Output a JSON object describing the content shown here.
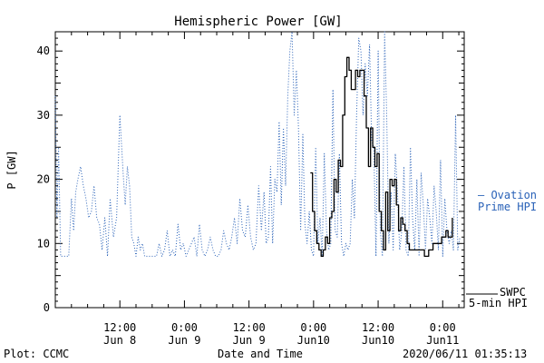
{
  "chart_data": {
    "type": "line",
    "title": "Hemispheric Power [GW]",
    "xlabel": "Date and Time",
    "ylabel": "P [GW]",
    "ylim": [
      0,
      43
    ],
    "xlim_hours": [
      0,
      76
    ],
    "yticks": [
      0,
      10,
      20,
      30,
      40
    ],
    "xticks": [
      {
        "hour": 12,
        "top": "12:00",
        "bottom": "Jun 8"
      },
      {
        "hour": 24,
        "top": "0:00",
        "bottom": "Jun 9"
      },
      {
        "hour": 36,
        "top": "12:00",
        "bottom": "Jun 9"
      },
      {
        "hour": 48,
        "top": "0:00",
        "bottom": "Jun10"
      },
      {
        "hour": 60,
        "top": "12:00",
        "bottom": "Jun10"
      },
      {
        "hour": 72,
        "top": "0:00",
        "bottom": "Jun11"
      }
    ],
    "series": [
      {
        "name": "Ovation Prime HPI",
        "label_lines": [
          "— Ovation",
          "Prime HPI"
        ],
        "color": "#2a62b8",
        "style": "dotted",
        "x": [
          0,
          0.3,
          0.6,
          1,
          1.5,
          2,
          2.5,
          3,
          3.4,
          3.8,
          4.2,
          4.7,
          5.2,
          5.7,
          6.2,
          6.7,
          7.2,
          7.7,
          8.2,
          8.7,
          9.2,
          9.7,
          10.2,
          10.8,
          11.4,
          12,
          12.6,
          13,
          13.4,
          13.8,
          14.2,
          14.6,
          15,
          15.4,
          15.8,
          16.2,
          16.6,
          17,
          17.4,
          17.8,
          18.3,
          18.8,
          19.3,
          19.8,
          20.3,
          20.8,
          21.3,
          21.8,
          22.3,
          22.8,
          23.3,
          23.8,
          24.3,
          24.8,
          25.3,
          25.8,
          26.3,
          26.8,
          27.3,
          27.8,
          28.3,
          28.8,
          29.3,
          29.8,
          30.3,
          30.8,
          31.3,
          31.8,
          32.3,
          32.8,
          33.3,
          33.8,
          34.3,
          34.8,
          35.3,
          35.8,
          36.3,
          36.8,
          37.3,
          37.8,
          38.3,
          38.8,
          39.2,
          39.6,
          40,
          40.4,
          40.8,
          41.2,
          41.6,
          42,
          42.4,
          42.8,
          43.2,
          43.6,
          44,
          44.4,
          44.8,
          45.2,
          45.6,
          46,
          46.4,
          46.8,
          47.2,
          47.6,
          48,
          48.4,
          48.8,
          49.2,
          49.6,
          50,
          50.4,
          50.8,
          51.2,
          51.6,
          52,
          52.4,
          52.8,
          53.2,
          53.6,
          54,
          54.4,
          54.8,
          55.2,
          55.6,
          56,
          56.4,
          56.8,
          57.2,
          57.6,
          58,
          58.4,
          58.8,
          59.2,
          59.6,
          60,
          60.4,
          60.8,
          61.2,
          61.6,
          62,
          62.4,
          62.8,
          63.2,
          63.6,
          64,
          64.4,
          64.8,
          65.2,
          65.6,
          66,
          66.4,
          66.8,
          67.2,
          67.6,
          68,
          68.4,
          68.8,
          69.2,
          69.6,
          70,
          70.4,
          70.8,
          71.2,
          71.6,
          72,
          72.4,
          72.8,
          73.2,
          73.6,
          74,
          74.4,
          74.8,
          75.2
        ],
        "values": [
          33,
          14,
          25,
          8,
          8,
          8,
          8,
          17,
          12,
          18,
          20,
          22,
          19,
          17,
          14,
          15,
          19,
          14,
          13,
          9,
          14,
          8,
          17,
          11,
          14,
          30,
          21,
          16,
          22,
          19,
          11,
          10,
          8,
          11,
          9,
          10,
          8,
          8,
          8,
          8,
          8,
          8,
          10,
          8,
          9,
          12,
          8,
          9,
          8,
          13,
          9,
          10,
          8,
          9,
          10,
          11,
          8,
          13,
          9,
          8,
          9,
          11,
          9,
          8,
          8,
          9,
          12,
          10,
          9,
          11,
          14,
          10,
          17,
          12,
          11,
          16,
          11,
          9,
          10,
          19,
          12,
          18,
          10,
          11,
          22,
          10,
          20,
          18,
          29,
          16,
          28,
          19,
          33,
          40,
          43,
          30,
          37,
          28,
          12,
          27,
          13,
          10,
          15,
          9,
          8,
          25,
          10,
          14,
          8,
          24,
          12,
          9,
          10,
          34,
          12,
          11,
          24,
          10,
          8,
          10,
          9,
          10,
          20,
          14,
          30,
          42,
          40,
          30,
          38,
          33,
          41,
          26,
          25,
          8,
          40,
          12,
          8,
          43,
          30,
          10,
          18,
          9,
          24,
          18,
          9,
          12,
          22,
          9,
          8,
          25,
          14,
          9,
          20,
          8,
          21,
          16,
          9,
          17,
          14,
          10,
          19,
          15,
          9,
          23,
          8,
          17,
          12,
          10,
          12,
          9,
          30,
          9,
          11
        ]
      },
      {
        "name": "SWPC 5-min HPI",
        "label_lines": [
          "SWPC",
          "5-min HPI"
        ],
        "color": "#000000",
        "style": "solid",
        "x": [
          47.4,
          47.8,
          48.2,
          48.6,
          49,
          49.4,
          49.8,
          50.2,
          50.6,
          51,
          51.4,
          51.8,
          52.2,
          52.6,
          53,
          53.4,
          53.8,
          54.2,
          54.6,
          55,
          55.4,
          55.8,
          56.2,
          56.6,
          57,
          57.4,
          57.8,
          58.2,
          58.6,
          59,
          59.4,
          59.8,
          60.2,
          60.6,
          61,
          61.4,
          61.8,
          62.2,
          62.6,
          63,
          63.4,
          63.8,
          64.2,
          64.6,
          65,
          65.4,
          65.8,
          66.2,
          66.6,
          67,
          67.4,
          67.8,
          68.2,
          68.6,
          69,
          69.4,
          69.8,
          70.2,
          70.6,
          71,
          71.4,
          71.8,
          72.2,
          72.6,
          73,
          73.4,
          73.8
        ],
        "values": [
          21,
          15,
          12,
          10,
          9,
          8,
          9,
          11,
          10,
          14,
          15,
          20,
          18,
          23,
          22,
          30,
          36,
          39,
          37,
          34,
          34,
          37,
          36,
          37,
          37,
          33,
          28,
          22,
          28,
          25,
          22,
          24,
          15,
          12,
          9,
          18,
          12,
          20,
          19,
          20,
          16,
          12,
          14,
          13,
          12,
          10,
          9,
          9,
          9,
          9,
          9,
          9,
          9,
          8,
          8,
          9,
          9,
          10,
          10,
          10,
          10,
          11,
          11,
          12,
          11,
          11,
          14
        ]
      }
    ]
  },
  "footer": {
    "plot_credit": "Plot: CCMC",
    "timestamp": "2020/06/11 01:35:13"
  }
}
